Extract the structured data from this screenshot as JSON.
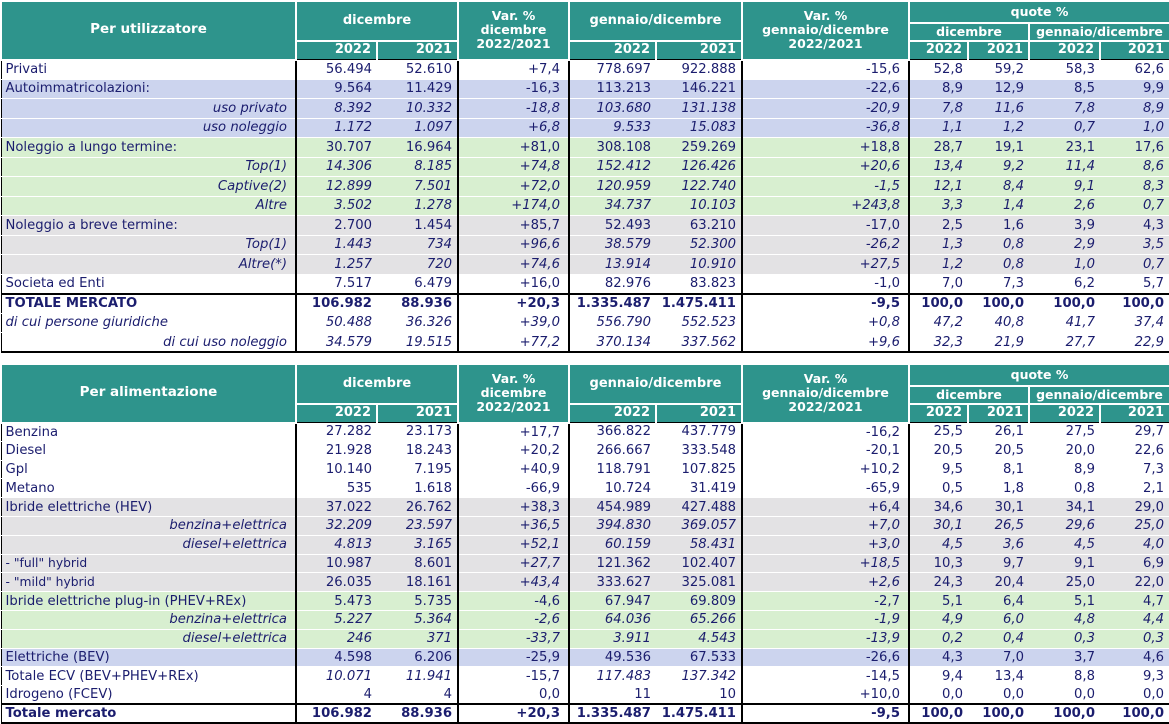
{
  "colors": {
    "header_teal": "#2e948c",
    "row_blue": "#ccd4ee",
    "row_green": "#d8efd0",
    "row_gray": "#e3e2e4",
    "text_navy": "#1b1d6e"
  },
  "tables": [
    {
      "name": "Per utilizzatore",
      "header": {
        "col_title": "Per utilizzatore",
        "dicembre": "dicembre",
        "gennaio_dicembre": "gennaio/dicembre",
        "var_dic": [
          "Var. %",
          "dicembre",
          "2022/2021"
        ],
        "var_gd": [
          "Var. %",
          "gennaio/dicembre",
          "2022/2021"
        ],
        "quote": "quote %",
        "quote_dic": "dicembre",
        "quote_gd": "gennaio/dicembre",
        "years": [
          "2022",
          "2021"
        ]
      },
      "rows": [
        {
          "label": "Privati",
          "style": "normal",
          "bg": "white",
          "values": [
            "56.494",
            "52.610",
            "+7,4",
            "778.697",
            "922.888",
            "-15,6",
            "52,8",
            "59,2",
            "58,3",
            "62,6"
          ]
        },
        {
          "label": "Autoimmatricolazioni:",
          "style": "normal",
          "bg": "blue",
          "values": [
            "9.564",
            "11.429",
            "-16,3",
            "113.213",
            "146.221",
            "-22,6",
            "8,9",
            "12,9",
            "8,5",
            "9,9"
          ]
        },
        {
          "label": "uso privato",
          "style": "sub",
          "bg": "blue",
          "values": [
            "8.392",
            "10.332",
            "-18,8",
            "103.680",
            "131.138",
            "-20,9",
            "7,8",
            "11,6",
            "7,8",
            "8,9"
          ]
        },
        {
          "label": "uso noleggio",
          "style": "sub",
          "bg": "blue",
          "values": [
            "1.172",
            "1.097",
            "+6,8",
            "9.533",
            "15.083",
            "-36,8",
            "1,1",
            "1,2",
            "0,7",
            "1,0"
          ]
        },
        {
          "label": "Noleggio a lungo termine:",
          "style": "normal",
          "bg": "green",
          "values": [
            "30.707",
            "16.964",
            "+81,0",
            "308.108",
            "259.269",
            "+18,8",
            "28,7",
            "19,1",
            "23,1",
            "17,6"
          ]
        },
        {
          "label": "Top(1)",
          "style": "sub",
          "bg": "green",
          "values": [
            "14.306",
            "8.185",
            "+74,8",
            "152.412",
            "126.426",
            "+20,6",
            "13,4",
            "9,2",
            "11,4",
            "8,6"
          ]
        },
        {
          "label": "Captive(2)",
          "style": "sub",
          "bg": "green",
          "values": [
            "12.899",
            "7.501",
            "+72,0",
            "120.959",
            "122.740",
            "-1,5",
            "12,1",
            "8,4",
            "9,1",
            "8,3"
          ]
        },
        {
          "label": "Altre",
          "style": "sub",
          "bg": "green",
          "values": [
            "3.502",
            "1.278",
            "+174,0",
            "34.737",
            "10.103",
            "+243,8",
            "3,3",
            "1,4",
            "2,6",
            "0,7"
          ]
        },
        {
          "label": "Noleggio a breve termine:",
          "style": "normal",
          "bg": "gray",
          "values": [
            "2.700",
            "1.454",
            "+85,7",
            "52.493",
            "63.210",
            "-17,0",
            "2,5",
            "1,6",
            "3,9",
            "4,3"
          ]
        },
        {
          "label": "Top(1)",
          "style": "sub",
          "bg": "gray",
          "values": [
            "1.443",
            "734",
            "+96,6",
            "38.579",
            "52.300",
            "-26,2",
            "1,3",
            "0,8",
            "2,9",
            "3,5"
          ]
        },
        {
          "label": "Altre(*)",
          "style": "sub",
          "bg": "gray",
          "values": [
            "1.257",
            "720",
            "+74,6",
            "13.914",
            "10.910",
            "+27,5",
            "1,2",
            "0,8",
            "1,0",
            "0,7"
          ]
        },
        {
          "label": "Societa ed Enti",
          "style": "normal",
          "bg": "white",
          "values": [
            "7.517",
            "6.479",
            "+16,0",
            "82.976",
            "83.823",
            "-1,0",
            "7,0",
            "7,3",
            "6,2",
            "5,7"
          ]
        },
        {
          "label": "TOTALE MERCATO",
          "style": "bold",
          "bg": "white",
          "values": [
            "106.982",
            "88.936",
            "+20,3",
            "1.335.487",
            "1.475.411",
            "-9,5",
            "100,0",
            "100,0",
            "100,0",
            "100,0"
          ]
        },
        {
          "label": "di cui persone giuridiche",
          "style": "dicui",
          "bg": "white",
          "values": [
            "50.488",
            "36.326",
            "+39,0",
            "556.790",
            "552.523",
            "+0,8",
            "47,2",
            "40,8",
            "41,7",
            "37,4"
          ]
        },
        {
          "label": "di cui uso noleggio",
          "style": "sub",
          "bg": "white",
          "values": [
            "34.579",
            "19.515",
            "+77,2",
            "370.134",
            "337.562",
            "+9,6",
            "32,3",
            "21,9",
            "27,7",
            "22,9"
          ]
        }
      ]
    },
    {
      "name": "Per alimentazione",
      "header": {
        "col_title": "Per alimentazione",
        "dicembre": "dicembre",
        "gennaio_dicembre": "gennaio/dicembre",
        "var_dic": [
          "Var. %",
          "dicembre",
          "2022/2021"
        ],
        "var_gd": [
          "Var. %",
          "gennaio/dicembre",
          "2022/2021"
        ],
        "quote": "quote %",
        "quote_dic": "dicembre",
        "quote_gd": "gennaio/dicembre",
        "years": [
          "2022",
          "2021"
        ]
      },
      "rows": [
        {
          "label": "Benzina",
          "style": "normal",
          "bg": "white",
          "values": [
            "27.282",
            "23.173",
            "+17,7",
            "366.822",
            "437.779",
            "-16,2",
            "25,5",
            "26,1",
            "27,5",
            "29,7"
          ]
        },
        {
          "label": "Diesel",
          "style": "normal",
          "bg": "white",
          "values": [
            "21.928",
            "18.243",
            "+20,2",
            "266.667",
            "333.548",
            "-20,1",
            "20,5",
            "20,5",
            "20,0",
            "22,6"
          ]
        },
        {
          "label": "Gpl",
          "style": "normal",
          "bg": "white",
          "values": [
            "10.140",
            "7.195",
            "+40,9",
            "118.791",
            "107.825",
            "+10,2",
            "9,5",
            "8,1",
            "8,9",
            "7,3"
          ]
        },
        {
          "label": "Metano",
          "style": "normal",
          "bg": "white",
          "values": [
            "535",
            "1.618",
            "-66,9",
            "10.724",
            "31.419",
            "-65,9",
            "0,5",
            "1,8",
            "0,8",
            "2,1"
          ]
        },
        {
          "label": "Ibride elettriche (HEV)",
          "style": "normal",
          "bg": "gray",
          "values": [
            "37.022",
            "26.762",
            "+38,3",
            "454.989",
            "427.488",
            "+6,4",
            "34,6",
            "30,1",
            "34,1",
            "29,0"
          ]
        },
        {
          "label": "benzina+elettrica",
          "style": "sub",
          "bg": "gray",
          "values": [
            "32.209",
            "23.597",
            "+36,5",
            "394.830",
            "369.057",
            "+7,0",
            "30,1",
            "26,5",
            "29,6",
            "25,0"
          ]
        },
        {
          "label": "diesel+elettrica",
          "style": "sub",
          "bg": "gray",
          "values": [
            "4.813",
            "3.165",
            "+52,1",
            "60.159",
            "58.431",
            "+3,0",
            "4,5",
            "3,6",
            "4,5",
            "4,0"
          ]
        },
        {
          "label": "- \"full\" hybrid",
          "style": "hyb",
          "bg": "gray",
          "values": [
            "10.987",
            "8.601",
            "+27,7",
            "121.362",
            "102.407",
            "+18,5",
            "10,3",
            "9,7",
            "9,1",
            "6,9"
          ]
        },
        {
          "label": "- \"mild\" hybrid",
          "style": "hyb",
          "bg": "gray",
          "values": [
            "26.035",
            "18.161",
            "+43,4",
            "333.627",
            "325.081",
            "+2,6",
            "24,3",
            "20,4",
            "25,0",
            "22,0"
          ]
        },
        {
          "label": "Ibride elettriche plug-in (PHEV+REx)",
          "style": "normal",
          "bg": "green",
          "values": [
            "5.473",
            "5.735",
            "-4,6",
            "67.947",
            "69.809",
            "-2,7",
            "5,1",
            "6,4",
            "5,1",
            "4,7"
          ]
        },
        {
          "label": "benzina+elettrica",
          "style": "sub",
          "bg": "green",
          "values": [
            "5.227",
            "5.364",
            "-2,6",
            "64.036",
            "65.266",
            "-1,9",
            "4,9",
            "6,0",
            "4,8",
            "4,4"
          ]
        },
        {
          "label": "diesel+elettrica",
          "style": "sub",
          "bg": "green",
          "values": [
            "246",
            "371",
            "-33,7",
            "3.911",
            "4.543",
            "-13,9",
            "0,2",
            "0,4",
            "0,3",
            "0,3"
          ]
        },
        {
          "label": "Elettriche (BEV)",
          "style": "normal",
          "bg": "blue",
          "values": [
            "4.598",
            "6.206",
            "-25,9",
            "49.536",
            "67.533",
            "-26,6",
            "4,3",
            "7,0",
            "3,7",
            "4,6"
          ]
        },
        {
          "label": "Totale ECV (BEV+PHEV+REx)",
          "style": "ecv",
          "bg": "white",
          "values": [
            "10.071",
            "11.941",
            "-15,7",
            "117.483",
            "137.342",
            "-14,5",
            "9,4",
            "13,4",
            "8,8",
            "9,3"
          ]
        },
        {
          "label": "Idrogeno (FCEV)",
          "style": "normal",
          "bg": "white",
          "values": [
            "4",
            "4",
            "0,0",
            "11",
            "10",
            "+10,0",
            "0,0",
            "0,0",
            "0,0",
            "0,0"
          ]
        },
        {
          "label": "Totale mercato",
          "style": "bold",
          "bg": "white",
          "values": [
            "106.982",
            "88.936",
            "+20,3",
            "1.335.487",
            "1.475.411",
            "-9,5",
            "100,0",
            "100,0",
            "100,0",
            "100,0"
          ]
        }
      ]
    }
  ]
}
